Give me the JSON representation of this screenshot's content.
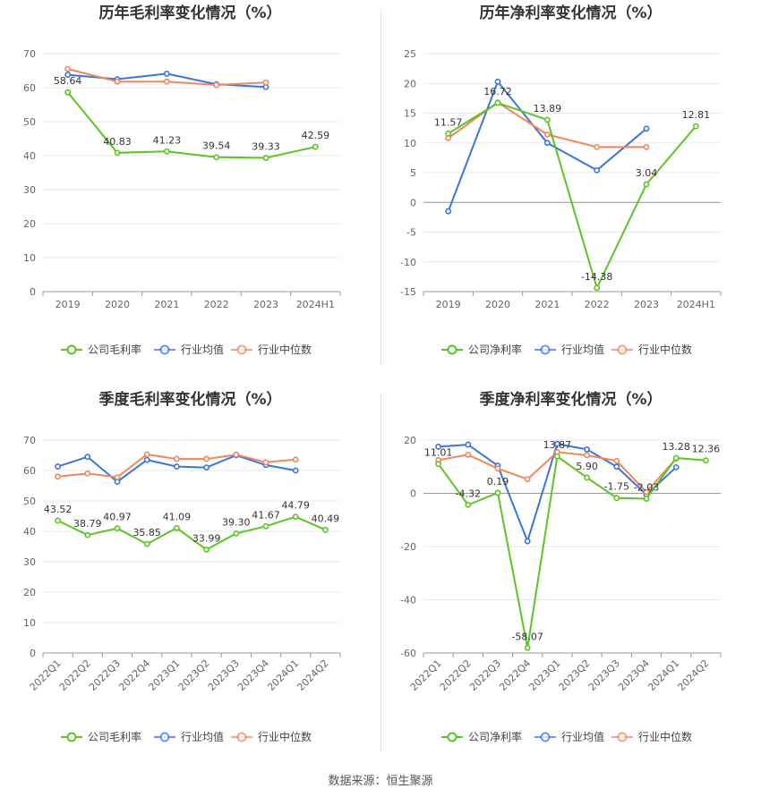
{
  "footer": "数据来源：恒生聚源",
  "colors": {
    "company": "#5cc424",
    "avg": "#3c74de",
    "median": "#f0865c"
  },
  "chart_data": [
    {
      "type": "line",
      "title": "历年毛利率变化情况（%）",
      "categories": [
        "2019",
        "2020",
        "2021",
        "2022",
        "2023",
        "2024H1"
      ],
      "ylim": [
        0,
        70
      ],
      "yticks": [
        0,
        10,
        20,
        30,
        40,
        50,
        60,
        70
      ],
      "legend_position": "bottom",
      "rotate_xticks": false,
      "series": [
        {
          "name": "公司毛利率",
          "color": "#5cc424",
          "show_labels": true,
          "values": [
            58.64,
            40.83,
            41.23,
            39.54,
            39.33,
            42.59
          ],
          "labels": [
            "58.64",
            "40.83",
            "41.23",
            "39.54",
            "39.33",
            "42.59"
          ]
        },
        {
          "name": "行业均值",
          "color": "#3c74de",
          "show_labels": false,
          "values": [
            63.8,
            62.5,
            64.1,
            61.0,
            60.2,
            null
          ]
        },
        {
          "name": "行业中位数",
          "color": "#f0865c",
          "show_labels": false,
          "values": [
            65.5,
            61.8,
            61.8,
            60.8,
            61.5,
            null
          ]
        }
      ]
    },
    {
      "type": "line",
      "title": "历年净利率变化情况（%）",
      "categories": [
        "2019",
        "2020",
        "2021",
        "2022",
        "2023",
        "2024H1"
      ],
      "ylim": [
        -15,
        25
      ],
      "yticks": [
        -15,
        -10,
        -5,
        0,
        5,
        10,
        15,
        20,
        25
      ],
      "legend_position": "bottom",
      "rotate_xticks": false,
      "series": [
        {
          "name": "公司净利率",
          "color": "#5cc424",
          "show_labels": true,
          "values": [
            11.57,
            16.72,
            13.89,
            -14.38,
            3.04,
            12.81
          ],
          "labels": [
            "11.57",
            "16.72",
            "13.89",
            "-14.38",
            "3.04",
            "12.81"
          ]
        },
        {
          "name": "行业均值",
          "color": "#3c74de",
          "show_labels": false,
          "values": [
            -1.5,
            20.3,
            10.0,
            5.4,
            12.4,
            null
          ]
        },
        {
          "name": "行业中位数",
          "color": "#f0865c",
          "show_labels": false,
          "values": [
            10.8,
            16.8,
            11.4,
            9.3,
            9.3,
            null
          ]
        }
      ]
    },
    {
      "type": "line",
      "title": "季度毛利率变化情况（%）",
      "categories": [
        "2022Q1",
        "2022Q2",
        "2022Q3",
        "2022Q4",
        "2023Q1",
        "2023Q2",
        "2023Q3",
        "2023Q4",
        "2024Q1",
        "2024Q2"
      ],
      "ylim": [
        0,
        70
      ],
      "yticks": [
        0,
        10,
        20,
        30,
        40,
        50,
        60,
        70
      ],
      "legend_position": "bottom",
      "rotate_xticks": true,
      "series": [
        {
          "name": "公司毛利率",
          "color": "#5cc424",
          "show_labels": true,
          "values": [
            43.52,
            38.79,
            40.97,
            35.85,
            41.09,
            33.99,
            39.3,
            41.67,
            44.79,
            40.49
          ],
          "labels": [
            "43.52",
            "38.79",
            "40.97",
            "35.85",
            "41.09",
            "33.99",
            "39.30",
            "41.67",
            "44.79",
            "40.49"
          ]
        },
        {
          "name": "行业均值",
          "color": "#3c74de",
          "show_labels": false,
          "values": [
            61.3,
            64.5,
            56.3,
            63.5,
            61.3,
            61.0,
            65.0,
            61.8,
            60.0,
            null
          ]
        },
        {
          "name": "行业中位数",
          "color": "#f0865c",
          "show_labels": false,
          "values": [
            58.0,
            59.0,
            57.8,
            65.3,
            63.8,
            63.8,
            65.2,
            62.7,
            63.6,
            null
          ]
        }
      ]
    },
    {
      "type": "line",
      "title": "季度净利率变化情况（%）",
      "categories": [
        "2022Q1",
        "2022Q2",
        "2022Q3",
        "2022Q4",
        "2023Q1",
        "2023Q2",
        "2023Q3",
        "2023Q4",
        "2024Q1",
        "2024Q2"
      ],
      "ylim": [
        -60,
        20
      ],
      "yticks": [
        -60,
        -40,
        -20,
        0,
        20
      ],
      "legend_position": "bottom",
      "rotate_xticks": true,
      "series": [
        {
          "name": "公司净利率",
          "color": "#5cc424",
          "show_labels": true,
          "values": [
            11.01,
            -4.32,
            0.19,
            -58.07,
            13.87,
            5.9,
            -1.75,
            -2.03,
            13.28,
            12.36
          ],
          "labels": [
            "11.01",
            "-4.32",
            "0.19",
            "-58.07",
            "13.87",
            "5.90",
            "-1.75",
            "-2.03",
            "13.28",
            "12.36"
          ]
        },
        {
          "name": "行业均值",
          "color": "#3c74de",
          "show_labels": false,
          "values": [
            17.5,
            18.3,
            10.4,
            -18.0,
            18.6,
            16.5,
            10.0,
            -0.5,
            9.8,
            null
          ]
        },
        {
          "name": "行业中位数",
          "color": "#f0865c",
          "show_labels": false,
          "values": [
            12.5,
            14.5,
            9.3,
            5.3,
            15.5,
            14.3,
            12.2,
            0.5,
            13.0,
            null
          ]
        }
      ]
    }
  ]
}
